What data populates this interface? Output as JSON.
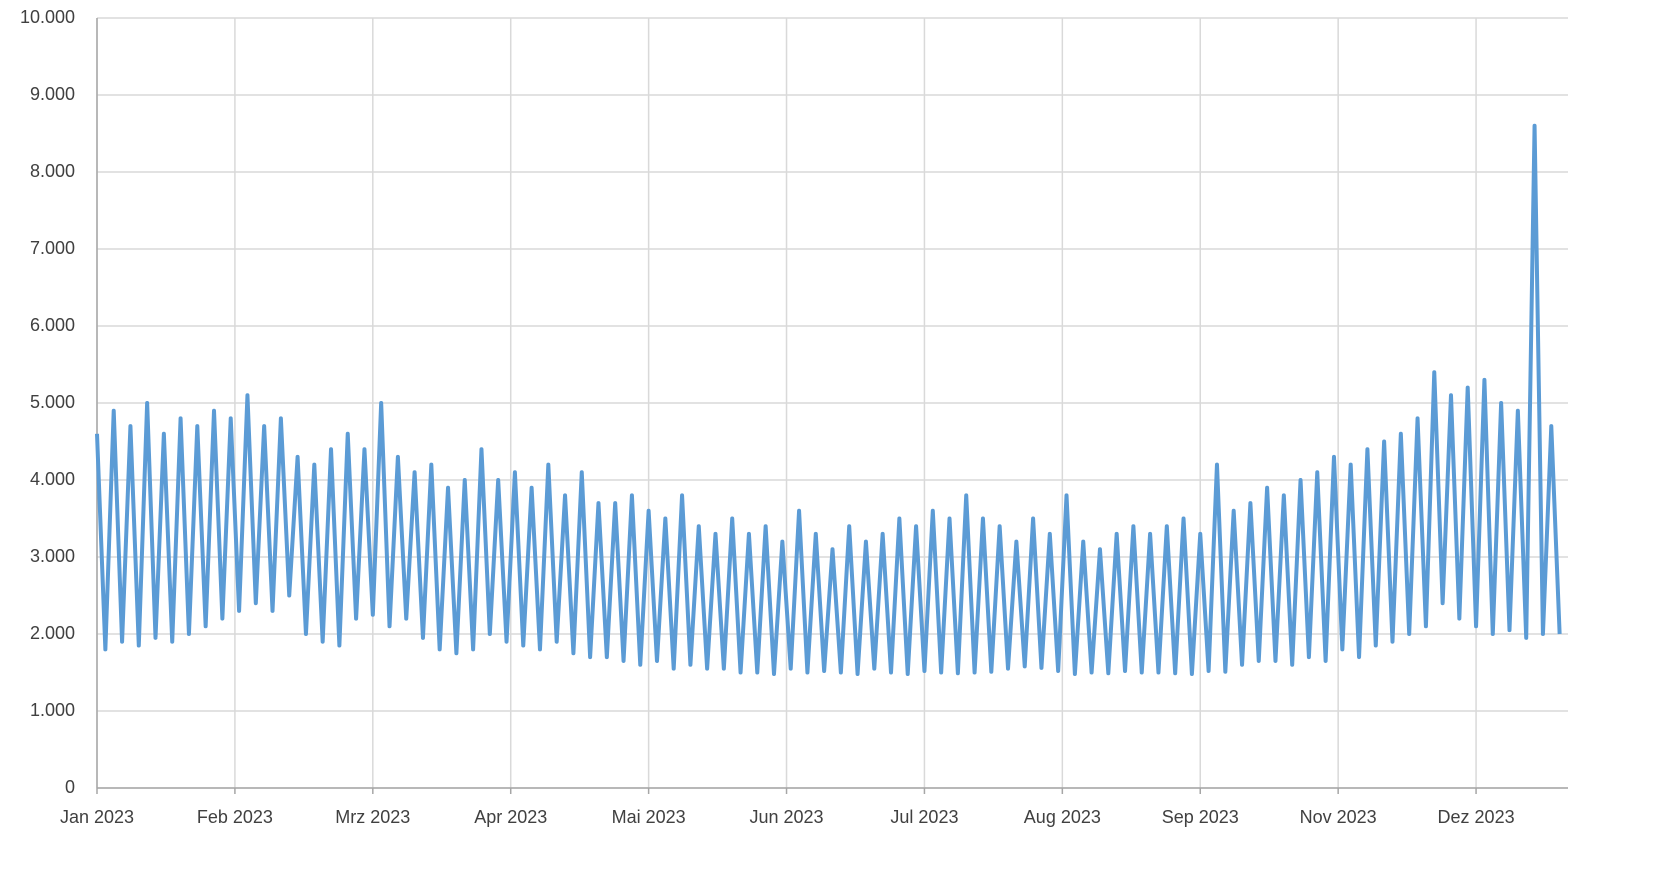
{
  "chart_data": {
    "type": "line",
    "x": [
      0,
      2,
      4,
      6,
      8,
      10,
      12,
      14,
      16,
      18,
      20,
      22,
      24,
      26,
      28,
      30,
      32,
      34,
      36,
      38,
      40,
      42,
      44,
      46,
      48,
      50,
      52,
      54,
      56,
      58,
      60,
      62,
      64,
      66,
      68,
      70,
      72,
      74,
      76,
      78,
      80,
      82,
      84,
      86,
      88,
      90,
      92,
      94,
      96,
      98,
      100,
      102,
      104,
      106,
      108,
      110,
      112,
      114,
      116,
      118,
      120,
      122,
      124,
      126,
      128,
      130,
      132,
      134,
      136,
      138,
      140,
      142,
      144,
      146,
      148,
      150,
      152,
      154,
      156,
      158,
      160,
      162,
      164,
      166,
      168,
      170,
      172,
      174,
      176,
      178,
      180,
      182,
      184,
      186,
      188,
      190,
      192,
      194,
      196,
      198,
      200,
      202,
      204,
      206,
      208,
      210,
      212,
      214,
      216,
      218,
      220,
      222,
      224,
      226,
      228,
      230,
      232,
      234,
      236,
      238,
      240,
      242,
      244,
      246,
      248,
      250,
      252,
      254,
      256,
      258,
      260,
      262,
      264,
      266,
      268,
      270,
      272,
      274,
      276,
      278,
      280,
      282,
      284,
      286,
      288,
      290,
      292,
      294,
      296,
      298,
      300,
      302,
      304,
      306,
      308,
      310,
      312,
      314,
      316,
      318,
      320,
      322,
      324,
      326,
      328,
      330,
      332,
      334,
      336,
      338,
      340,
      342,
      344,
      346,
      348,
      350
    ],
    "series": [
      {
        "color": "#5b9bd5",
        "values": [
          4600,
          1800,
          4900,
          1900,
          4700,
          1850,
          5000,
          1950,
          4600,
          1900,
          4800,
          2000,
          4700,
          2100,
          4900,
          2200,
          4800,
          2300,
          5100,
          2400,
          4700,
          2300,
          4800,
          2500,
          4300,
          2000,
          4200,
          1900,
          4400,
          1850,
          4600,
          2200,
          4400,
          2250,
          5000,
          2100,
          4300,
          2200,
          4100,
          1950,
          4200,
          1800,
          3900,
          1750,
          4000,
          1800,
          4400,
          2000,
          4000,
          1900,
          4100,
          1850,
          3900,
          1800,
          4200,
          1900,
          3800,
          1750,
          4100,
          1700,
          3700,
          1700,
          3700,
          1650,
          3800,
          1600,
          3600,
          1650,
          3500,
          1550,
          3800,
          1600,
          3400,
          1550,
          3300,
          1550,
          3500,
          1500,
          3300,
          1500,
          3400,
          1480,
          3200,
          1550,
          3600,
          1500,
          3300,
          1520,
          3100,
          1500,
          3400,
          1480,
          3200,
          1550,
          3300,
          1500,
          3500,
          1480,
          3400,
          1520,
          3600,
          1500,
          3500,
          1490,
          3800,
          1500,
          3500,
          1510,
          3400,
          1550,
          3200,
          1580,
          3500,
          1560,
          3300,
          1520,
          3800,
          1480,
          3200,
          1500,
          3100,
          1490,
          3300,
          1520,
          3400,
          1500,
          3300,
          1500,
          3400,
          1490,
          3500,
          1480,
          3300,
          1520,
          4200,
          1510,
          3600,
          1600,
          3700,
          1650,
          3900,
          1650,
          3800,
          1600,
          4000,
          1700,
          4100,
          1650,
          4300,
          1800,
          4200,
          1700,
          4400,
          1850,
          4500,
          1900,
          4600,
          2000,
          4800,
          2100,
          5400,
          2400,
          5100,
          2200,
          5200,
          2100,
          5300,
          2000,
          5000,
          2050,
          4900,
          1950,
          8600,
          2000,
          4700,
          2000
        ]
      }
    ],
    "xlim": [
      0,
      352
    ],
    "xticks": [
      {
        "value": 0,
        "label": "Jan 2023"
      },
      {
        "value": 33,
        "label": "Feb 2023"
      },
      {
        "value": 66,
        "label": "Mrz 2023"
      },
      {
        "value": 99,
        "label": "Apr 2023"
      },
      {
        "value": 132,
        "label": "Mai 2023"
      },
      {
        "value": 165,
        "label": "Jun 2023"
      },
      {
        "value": 198,
        "label": "Jul 2023"
      },
      {
        "value": 231,
        "label": "Aug 2023"
      },
      {
        "value": 264,
        "label": "Sep 2023"
      },
      {
        "value": 297,
        "label": "Nov 2023"
      },
      {
        "value": 330,
        "label": "Dez 2023"
      }
    ],
    "ylim": [
      0,
      10000
    ],
    "yticks": [
      0,
      {
        "value": 1000,
        "label": "1.000"
      },
      {
        "value": 2000,
        "label": "2.000"
      },
      {
        "value": 3000,
        "label": "3.000"
      },
      {
        "value": 4000,
        "label": "4.000"
      },
      {
        "value": 5000,
        "label": "5.000"
      },
      {
        "value": 6000,
        "label": "6.000"
      },
      {
        "value": 7000,
        "label": "7.000"
      },
      {
        "value": 8000,
        "label": "8.000"
      },
      {
        "value": 9000,
        "label": "9.000"
      },
      {
        "value": 10000,
        "label": "10.000"
      }
    ],
    "grid": true
  }
}
